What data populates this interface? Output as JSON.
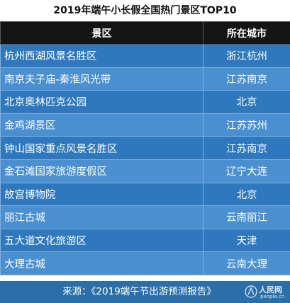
{
  "title": "2019年端午小长假全国热门景区TOP10",
  "table": {
    "headers": [
      "景区",
      "所在城市"
    ],
    "rows": [
      {
        "name": "杭州西湖风景名胜区",
        "city": "浙江杭州"
      },
      {
        "name": "南京夫子庙-秦淮风光带",
        "city": "江苏南京"
      },
      {
        "name": "北京奥林匹克公园",
        "city": "北京"
      },
      {
        "name": "金鸡湖景区",
        "city": "江苏苏州"
      },
      {
        "name": "钟山国家重点风景名胜区",
        "city": "江苏南京"
      },
      {
        "name": "金石滩国家旅游度假区",
        "city": "辽宁大连"
      },
      {
        "name": "故宫博物院",
        "city": "北京"
      },
      {
        "name": "丽江古城",
        "city": "云南丽江"
      },
      {
        "name": "五大道文化旅游区",
        "city": "天津"
      },
      {
        "name": "大理古城",
        "city": "云南大理"
      }
    ]
  },
  "footer": {
    "source": "来源：《2019端午节出游预测报告》"
  },
  "watermark": {
    "name": "人民网",
    "domain": "people.cn"
  },
  "colors": {
    "header_bg": "#141414",
    "row_dark": "#2f78bd",
    "row_light": "#4a8fcf",
    "footer_bg": "#2b6ea8"
  }
}
